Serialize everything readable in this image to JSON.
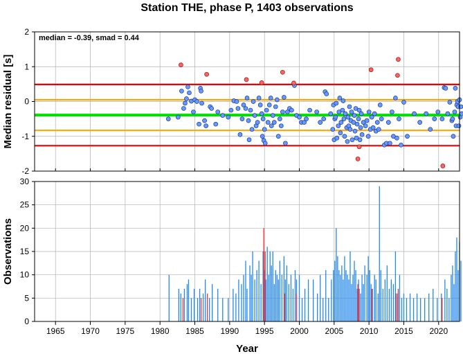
{
  "chart_data": [
    {
      "id": "residuals",
      "type": "scatter",
      "title": "Station THE, phase P, 1403 observations",
      "xlabel": "",
      "ylabel": "Median residual [s]",
      "xlim": [
        1962,
        2023
      ],
      "ylim": [
        -2,
        2
      ],
      "yticks": [
        -2,
        -1,
        0,
        1,
        2
      ],
      "annotation": "median = -0.39,  smad = 0.44",
      "grid": true,
      "colors": {
        "normal": "#6699ff",
        "outlier": "#ff6060",
        "median_line": "#00e000",
        "inner_band": "#ffa500",
        "outer_band": "#ee0000"
      },
      "lines": [
        {
          "y": 0.49,
          "role": "outer",
          "color": "#ee0000"
        },
        {
          "y": 0.05,
          "role": "inner",
          "color": "#ffa500"
        },
        {
          "y": -0.39,
          "role": "median",
          "color": "#00e000"
        },
        {
          "y": -0.83,
          "role": "inner",
          "color": "#ffa500"
        },
        {
          "y": -1.27,
          "role": "outer",
          "color": "#ee0000"
        }
      ],
      "points": [
        [
          1981.2,
          -0.5
        ],
        [
          1982.6,
          -0.45
        ],
        [
          1983.1,
          0.3
        ],
        [
          1983.4,
          -0.2
        ],
        [
          1983.6,
          -0.05
        ],
        [
          1983.8,
          0.08
        ],
        [
          1984.0,
          0.42
        ],
        [
          1984.2,
          0.25
        ],
        [
          1984.5,
          0.01
        ],
        [
          1984.8,
          -0.3
        ],
        [
          1985.0,
          0.05
        ],
        [
          1985.3,
          0.0
        ],
        [
          1985.6,
          -0.65
        ],
        [
          1985.8,
          0.38
        ],
        [
          1985.9,
          0.3
        ],
        [
          1986.0,
          -0.05
        ],
        [
          1986.4,
          -0.55
        ],
        [
          1986.6,
          -0.7
        ],
        [
          1987.2,
          -0.15
        ],
        [
          1987.4,
          -0.2
        ],
        [
          1988.0,
          -0.65
        ],
        [
          1988.3,
          -0.3
        ],
        [
          1989.0,
          -0.4
        ],
        [
          1989.8,
          -0.45
        ],
        [
          1990.2,
          -0.25
        ],
        [
          1990.6,
          0.02
        ],
        [
          1991.0,
          0.0
        ],
        [
          1991.2,
          -0.2
        ],
        [
          1991.5,
          -0.95
        ],
        [
          1991.8,
          -0.5
        ],
        [
          1992.0,
          -0.1
        ],
        [
          1992.3,
          -0.2
        ],
        [
          1992.5,
          0.1
        ],
        [
          1992.7,
          -0.55
        ],
        [
          1992.8,
          -1.1
        ],
        [
          1993.0,
          -0.25
        ],
        [
          1993.2,
          -0.8
        ],
        [
          1993.4,
          0.0
        ],
        [
          1993.6,
          -0.4
        ],
        [
          1993.8,
          -0.7
        ],
        [
          1994.0,
          -0.6
        ],
        [
          1994.2,
          0.1
        ],
        [
          1994.4,
          -0.1
        ],
        [
          1994.6,
          -0.35
        ],
        [
          1994.7,
          -1.0
        ],
        [
          1994.8,
          -0.5
        ],
        [
          1994.9,
          -1.12
        ],
        [
          1995.0,
          -0.8
        ],
        [
          1995.1,
          -1.2
        ],
        [
          1995.3,
          -0.25
        ],
        [
          1995.5,
          -0.6
        ],
        [
          1995.7,
          -0.1
        ],
        [
          1995.9,
          0.1
        ],
        [
          1996.0,
          -0.7
        ],
        [
          1996.2,
          -0.4
        ],
        [
          1996.4,
          -0.6
        ],
        [
          1996.6,
          -0.15
        ],
        [
          1996.8,
          0.05
        ],
        [
          1997.0,
          -1.0
        ],
        [
          1997.2,
          -0.5
        ],
        [
          1997.4,
          -0.7
        ],
        [
          1997.6,
          -0.3
        ],
        [
          1997.8,
          0.12
        ],
        [
          1998.0,
          -1.2
        ],
        [
          1998.3,
          -0.3
        ],
        [
          1998.6,
          -0.2
        ],
        [
          1998.9,
          -0.25
        ],
        [
          1999.3,
          0.46
        ],
        [
          1999.6,
          -0.4
        ],
        [
          2000.0,
          -0.45
        ],
        [
          2000.3,
          -0.6
        ],
        [
          2000.7,
          -0.6
        ],
        [
          2001.0,
          -0.5
        ],
        [
          2001.5,
          -0.25
        ],
        [
          2002.5,
          -0.3
        ],
        [
          2003.0,
          -0.6
        ],
        [
          2003.5,
          -0.5
        ],
        [
          2003.7,
          0.28
        ],
        [
          2003.9,
          0.22
        ],
        [
          2004.5,
          -0.35
        ],
        [
          2004.8,
          -0.8
        ],
        [
          2004.9,
          -0.1
        ],
        [
          2005.0,
          -1.1
        ],
        [
          2005.1,
          -0.5
        ],
        [
          2005.2,
          -0.45
        ],
        [
          2005.3,
          -0.05
        ],
        [
          2005.4,
          -1.05
        ],
        [
          2005.6,
          -0.7
        ],
        [
          2005.7,
          -0.3
        ],
        [
          2005.8,
          0.1
        ],
        [
          2005.9,
          -0.9
        ],
        [
          2006.0,
          -0.6
        ],
        [
          2006.2,
          -0.25
        ],
        [
          2006.3,
          0.02
        ],
        [
          2006.4,
          -0.5
        ],
        [
          2006.5,
          -1.0
        ],
        [
          2006.6,
          -0.35
        ],
        [
          2006.8,
          -0.75
        ],
        [
          2006.9,
          -1.15
        ],
        [
          2007.0,
          -0.45
        ],
        [
          2007.1,
          -0.7
        ],
        [
          2007.2,
          -0.15
        ],
        [
          2007.3,
          -0.8
        ],
        [
          2007.4,
          -0.55
        ],
        [
          2007.5,
          -0.3
        ],
        [
          2007.6,
          -1.1
        ],
        [
          2007.8,
          -0.6
        ],
        [
          2007.9,
          -0.4
        ],
        [
          2008.0,
          -0.85
        ],
        [
          2008.1,
          -0.2
        ],
        [
          2008.2,
          -1.05
        ],
        [
          2008.3,
          -0.65
        ],
        [
          2008.5,
          -0.5
        ],
        [
          2008.6,
          -0.25
        ],
        [
          2008.7,
          -1.1
        ],
        [
          2008.8,
          -0.75
        ],
        [
          2008.9,
          -0.35
        ],
        [
          2009.0,
          -0.95
        ],
        [
          2009.2,
          -0.6
        ],
        [
          2009.5,
          -0.7
        ],
        [
          2009.7,
          -0.55
        ],
        [
          2009.9,
          -1.0
        ],
        [
          2010.0,
          -0.3
        ],
        [
          2010.2,
          -0.8
        ],
        [
          2010.4,
          -0.45
        ],
        [
          2010.6,
          -0.75
        ],
        [
          2010.8,
          -0.35
        ],
        [
          2011.0,
          -0.85
        ],
        [
          2011.2,
          -0.6
        ],
        [
          2011.4,
          -0.8
        ],
        [
          2011.6,
          -0.1
        ],
        [
          2011.8,
          -0.5
        ],
        [
          2012.2,
          -1.25
        ],
        [
          2012.5,
          -1.2
        ],
        [
          2012.8,
          -0.6
        ],
        [
          2013.0,
          -1.2
        ],
        [
          2013.3,
          -0.3
        ],
        [
          2013.5,
          -1.0
        ],
        [
          2013.8,
          0.1
        ],
        [
          2014.0,
          -1.05
        ],
        [
          2014.3,
          -0.5
        ],
        [
          2014.6,
          -1.25
        ],
        [
          2015.0,
          -0.02
        ],
        [
          2015.5,
          -1.0
        ],
        [
          2016.5,
          -0.35
        ],
        [
          2017.3,
          -0.6
        ],
        [
          2018.2,
          -0.35
        ],
        [
          2018.8,
          -0.8
        ],
        [
          2019.4,
          -0.5
        ],
        [
          2019.9,
          -0.3
        ],
        [
          2020.5,
          -0.5
        ],
        [
          2020.8,
          0.4
        ],
        [
          2021.0,
          0.38
        ],
        [
          2021.3,
          -0.35
        ],
        [
          2021.6,
          -0.02
        ],
        [
          2021.9,
          -0.55
        ],
        [
          2022.0,
          -0.5
        ],
        [
          2022.1,
          -1.0
        ],
        [
          2022.3,
          -0.3
        ],
        [
          2022.4,
          0.38
        ],
        [
          2022.5,
          -0.7
        ],
        [
          2022.6,
          -0.1
        ],
        [
          2022.7,
          0.0
        ],
        [
          2022.8,
          -0.15
        ],
        [
          2022.9,
          -0.7
        ],
        [
          2023.0,
          0.05
        ],
        [
          2023.1,
          -0.45
        ],
        [
          2023.2,
          -0.15
        ],
        [
          2023.3,
          -0.35
        ]
      ],
      "outlier_points": [
        [
          1983.0,
          1.05
        ],
        [
          1986.7,
          0.78
        ],
        [
          1992.4,
          0.63
        ],
        [
          1994.6,
          0.54
        ],
        [
          1997.6,
          0.84
        ],
        [
          1999.2,
          0.53
        ],
        [
          2008.4,
          -1.65
        ],
        [
          2008.6,
          -1.3
        ],
        [
          2010.3,
          0.91
        ],
        [
          2014.2,
          1.21
        ],
        [
          2014.1,
          0.75
        ],
        [
          2020.6,
          -1.85
        ]
      ]
    },
    {
      "id": "observations",
      "type": "bar",
      "xlabel": "Year",
      "ylabel": "Observations",
      "xlim": [
        1962,
        2023
      ],
      "ylim": [
        0,
        30
      ],
      "xticks": [
        1965,
        1970,
        1975,
        1980,
        1985,
        1990,
        1995,
        2000,
        2005,
        2010,
        2015,
        2020
      ],
      "yticks": [
        0,
        5,
        10,
        15,
        20,
        25,
        30
      ],
      "grid": true,
      "colors": {
        "bar": "#2288ee",
        "outlier_bar": "#ee3333"
      },
      "bars": [
        [
          1981.3,
          10
        ],
        [
          1982.7,
          7
        ],
        [
          1983.0,
          6
        ],
        [
          1983.5,
          7
        ],
        [
          1983.9,
          8
        ],
        [
          1984.1,
          9
        ],
        [
          1984.5,
          5
        ],
        [
          1984.9,
          7
        ],
        [
          1985.4,
          5
        ],
        [
          1985.7,
          7
        ],
        [
          1986.2,
          6
        ],
        [
          1986.5,
          9
        ],
        [
          1987.1,
          5
        ],
        [
          1987.5,
          8
        ],
        [
          1988.3,
          7
        ],
        [
          1989.0,
          5
        ],
        [
          1989.8,
          5
        ],
        [
          1990.5,
          7
        ],
        [
          1990.9,
          6
        ],
        [
          1991.3,
          9
        ],
        [
          1991.7,
          8
        ],
        [
          1992.0,
          10
        ],
        [
          1992.3,
          13
        ],
        [
          1992.5,
          7
        ],
        [
          1992.9,
          12
        ],
        [
          1993.1,
          10
        ],
        [
          1993.3,
          15
        ],
        [
          1993.6,
          9
        ],
        [
          1993.9,
          11
        ],
        [
          1994.2,
          13
        ],
        [
          1994.5,
          8
        ],
        [
          1994.8,
          15
        ],
        [
          1995.0,
          11
        ],
        [
          1995.2,
          9
        ],
        [
          1995.4,
          16
        ],
        [
          1995.6,
          10
        ],
        [
          1995.8,
          15
        ],
        [
          1996.0,
          12
        ],
        [
          1996.2,
          15
        ],
        [
          1996.4,
          8
        ],
        [
          1996.6,
          11
        ],
        [
          1996.8,
          10
        ],
        [
          1997.0,
          9
        ],
        [
          1997.2,
          13
        ],
        [
          1997.5,
          10
        ],
        [
          1997.8,
          14
        ],
        [
          1998.0,
          9
        ],
        [
          1998.2,
          12
        ],
        [
          1998.5,
          8
        ],
        [
          1998.8,
          10
        ],
        [
          1999.1,
          7
        ],
        [
          1999.4,
          11
        ],
        [
          1999.6,
          9
        ],
        [
          2000.0,
          10
        ],
        [
          2000.4,
          5
        ],
        [
          2000.8,
          7
        ],
        [
          2001.3,
          9
        ],
        [
          2002.0,
          9
        ],
        [
          2002.6,
          6
        ],
        [
          2003.0,
          10
        ],
        [
          2003.4,
          5
        ],
        [
          2003.8,
          11
        ],
        [
          2004.2,
          5
        ],
        [
          2004.6,
          9
        ],
        [
          2004.9,
          11
        ],
        [
          2005.1,
          13
        ],
        [
          2005.3,
          20
        ],
        [
          2005.5,
          14
        ],
        [
          2005.7,
          11
        ],
        [
          2005.9,
          10
        ],
        [
          2006.1,
          12
        ],
        [
          2006.3,
          9
        ],
        [
          2006.5,
          14
        ],
        [
          2006.7,
          11
        ],
        [
          2006.9,
          10
        ],
        [
          2007.1,
          9
        ],
        [
          2007.3,
          15
        ],
        [
          2007.5,
          8
        ],
        [
          2007.7,
          10
        ],
        [
          2007.9,
          13
        ],
        [
          2008.1,
          11
        ],
        [
          2008.3,
          7
        ],
        [
          2008.5,
          9
        ],
        [
          2008.8,
          6
        ],
        [
          2009.0,
          10
        ],
        [
          2009.2,
          8
        ],
        [
          2009.4,
          12
        ],
        [
          2009.7,
          10
        ],
        [
          2009.9,
          14
        ],
        [
          2010.1,
          11
        ],
        [
          2010.3,
          8
        ],
        [
          2010.5,
          7
        ],
        [
          2010.8,
          10
        ],
        [
          2011.0,
          9
        ],
        [
          2011.3,
          6
        ],
        [
          2011.5,
          29
        ],
        [
          2011.7,
          11
        ],
        [
          2012.0,
          7
        ],
        [
          2012.3,
          9
        ],
        [
          2012.6,
          12
        ],
        [
          2012.9,
          7
        ],
        [
          2013.2,
          9
        ],
        [
          2013.5,
          8
        ],
        [
          2013.8,
          15
        ],
        [
          2014.1,
          6
        ],
        [
          2014.4,
          10
        ],
        [
          2014.7,
          5
        ],
        [
          2015.0,
          6
        ],
        [
          2015.4,
          5
        ],
        [
          2015.9,
          6
        ],
        [
          2016.4,
          5
        ],
        [
          2016.9,
          6
        ],
        [
          2017.4,
          5
        ],
        [
          2018.0,
          5
        ],
        [
          2018.6,
          6
        ],
        [
          2019.2,
          7
        ],
        [
          2019.8,
          5
        ],
        [
          2020.4,
          6
        ],
        [
          2020.9,
          9
        ],
        [
          2021.2,
          7
        ],
        [
          2021.5,
          5
        ],
        [
          2021.8,
          10
        ],
        [
          2022.0,
          12
        ],
        [
          2022.2,
          8
        ],
        [
          2022.4,
          15
        ],
        [
          2022.6,
          18
        ],
        [
          2022.8,
          11
        ],
        [
          2023.0,
          17
        ],
        [
          2023.2,
          13
        ]
      ],
      "outlier_bars": [
        [
          1983.3,
          5
        ],
        [
          1985.9,
          5
        ],
        [
          1986.8,
          6
        ],
        [
          1994.9,
          20
        ],
        [
          1995.1,
          15
        ],
        [
          1997.9,
          6
        ],
        [
          1999.6,
          6
        ],
        [
          2008.4,
          8
        ],
        [
          2008.6,
          7
        ],
        [
          2010.4,
          7
        ],
        [
          2013.9,
          6
        ],
        [
          2014.2,
          7
        ],
        [
          2020.5,
          5
        ]
      ]
    }
  ]
}
